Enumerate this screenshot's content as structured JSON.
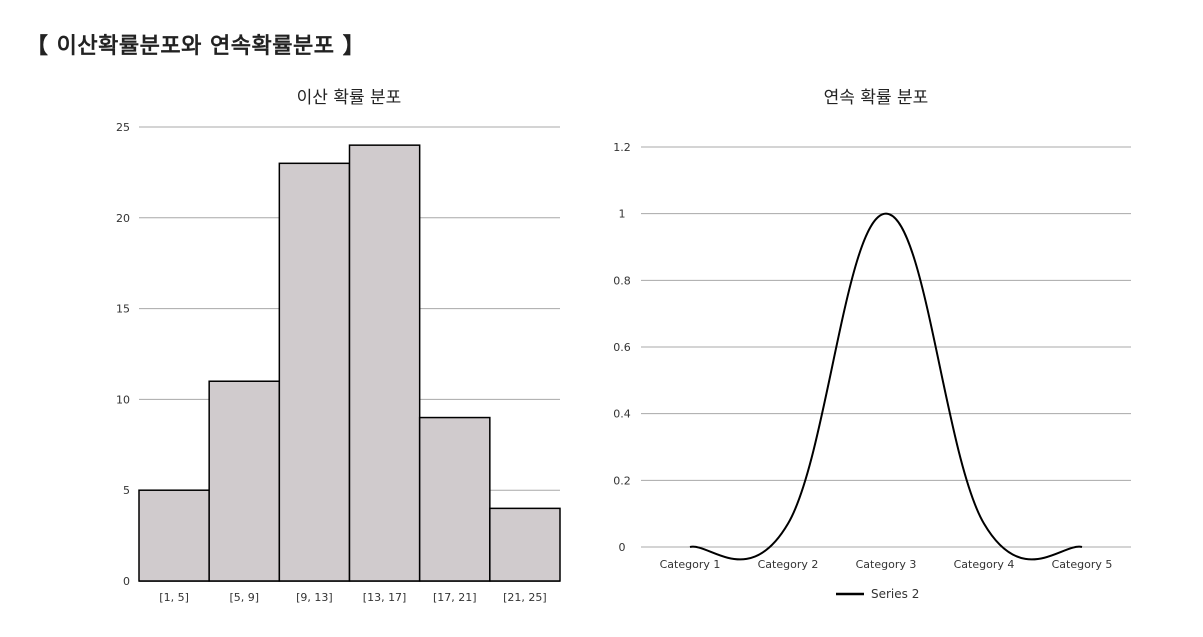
{
  "page": {
    "title": "【 이산확률분포와 연속확률분포 】"
  },
  "chart_data": [
    {
      "type": "bar",
      "title": "이산 확률 분포",
      "categories": [
        "[1, 5]",
        "[5, 9]",
        "[9, 13]",
        "[13, 17]",
        "[17, 21]",
        "[21, 25]"
      ],
      "values": [
        5,
        11,
        23,
        24,
        9,
        4
      ],
      "ylim": [
        0,
        25
      ],
      "yticks": [
        0,
        5,
        10,
        15,
        20,
        25
      ],
      "grid": true,
      "bar_color": "#d0cbcd",
      "bar_edge_color": "#000000"
    },
    {
      "type": "line",
      "title": "연속 확률 분포",
      "categories": [
        "Category 1",
        "Category 2",
        "Category 3",
        "Category 4",
        "Category 5"
      ],
      "series": [
        {
          "name": "Series 2",
          "values": [
            0,
            0.07,
            1.0,
            0.07,
            0
          ],
          "color": "#000000",
          "smooth": true
        }
      ],
      "ylim": [
        0,
        1.2
      ],
      "yticks": [
        "0",
        "0.2",
        "0.4",
        "0.6",
        "0.8",
        "1",
        "1.2"
      ],
      "grid": true,
      "legend": "bottom"
    }
  ]
}
